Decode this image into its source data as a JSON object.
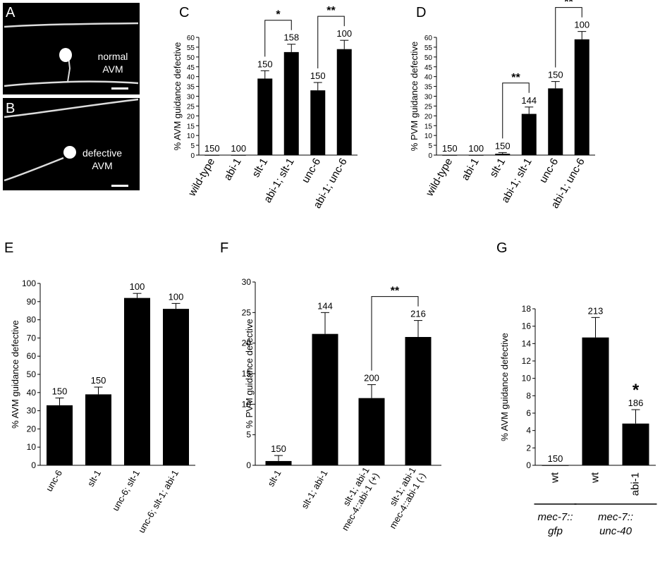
{
  "micrographs": [
    {
      "panel": "A",
      "label_line1": "normal",
      "label_line2": "AVM"
    },
    {
      "panel": "B",
      "label_line1": "defective",
      "label_line2": "AVM"
    }
  ],
  "chart_data": [
    {
      "panel": "C",
      "type": "bar",
      "ylabel": "% AVM guidance defective",
      "ylim": [
        0,
        60
      ],
      "yticks": [
        "0",
        "5",
        "10",
        "15",
        "20",
        "25",
        "30",
        "35",
        "40",
        "45",
        "50",
        "55",
        "60"
      ],
      "categories": [
        "wild-type",
        "abi-1",
        "slt-1",
        "abi-1; slt-1",
        "unc-6",
        "abi-1; unc-6"
      ],
      "values": [
        0,
        0,
        39,
        52.5,
        33,
        54
      ],
      "errors": [
        0,
        0,
        4,
        4,
        4,
        4.5
      ],
      "n_labels": [
        "150",
        "100",
        "150",
        "158",
        "150",
        "100"
      ],
      "significance": [
        {
          "from": 2,
          "to": 3,
          "label": "*"
        },
        {
          "from": 4,
          "to": 5,
          "label": "**"
        }
      ]
    },
    {
      "panel": "D",
      "type": "bar",
      "ylabel": "% PVM guidance defective",
      "ylim": [
        0,
        60
      ],
      "yticks": [
        "0",
        "5",
        "10",
        "15",
        "20",
        "25",
        "30",
        "35",
        "40",
        "45",
        "50",
        "55",
        "60"
      ],
      "categories": [
        "wild-type",
        "abi-1",
        "slt-1",
        "abi-1; slt-1",
        "unc-6",
        "abi-1; unc-6"
      ],
      "values": [
        0,
        0,
        0.7,
        21,
        34,
        59
      ],
      "errors": [
        0,
        0,
        0.6,
        3.5,
        3.5,
        4
      ],
      "n_labels": [
        "150",
        "100",
        "150",
        "144",
        "150",
        "100"
      ],
      "significance": [
        {
          "from": 2,
          "to": 3,
          "label": "**"
        },
        {
          "from": 4,
          "to": 5,
          "label": "**"
        }
      ]
    },
    {
      "panel": "E",
      "type": "bar",
      "ylabel": "% AVM guidance defective",
      "ylim": [
        0,
        100
      ],
      "yticks": [
        "0",
        "10",
        "20",
        "30",
        "40",
        "50",
        "60",
        "70",
        "80",
        "90",
        "100"
      ],
      "categories": [
        "unc-6",
        "slt-1",
        "unc-6; slt-1",
        "unc-6; slt-1; abi-1"
      ],
      "values": [
        33,
        39,
        92,
        86
      ],
      "errors": [
        4,
        4,
        2.5,
        3
      ],
      "n_labels": [
        "150",
        "150",
        "100",
        "100"
      ],
      "significance": []
    },
    {
      "panel": "F",
      "type": "bar",
      "ylabel": "% PVM guidance defective",
      "ylim": [
        0,
        30
      ],
      "yticks": [
        "0",
        "5",
        "10",
        "15",
        "20",
        "25",
        "30"
      ],
      "categories": [
        "slt-1",
        "slt-1; abi-1",
        "slt-1; abi-1\nmec-4::abi-1 (+)",
        "slt-1; abi-1\nmec-4::abi-1 (-)"
      ],
      "values": [
        0.7,
        21.5,
        11,
        21
      ],
      "errors": [
        0.9,
        3.5,
        2.2,
        2.7
      ],
      "n_labels": [
        "150",
        "144",
        "200",
        "216"
      ],
      "significance": [
        {
          "from": 2,
          "to": 3,
          "label": "**"
        }
      ]
    },
    {
      "panel": "G",
      "type": "bar",
      "ylabel": "% AVM guidance defective",
      "ylim": [
        0,
        18
      ],
      "yticks": [
        "0",
        "2",
        "4",
        "6",
        "8",
        "10",
        "12",
        "14",
        "16",
        "18"
      ],
      "categories": [
        "wt",
        "wt",
        "abi-1"
      ],
      "values": [
        0,
        14.7,
        4.8
      ],
      "errors": [
        0,
        2.3,
        1.6
      ],
      "n_labels": [
        "150",
        "213",
        "186"
      ],
      "significance": [
        {
          "bar": 2,
          "label": "*"
        }
      ],
      "groups": [
        {
          "line1": "mec-7::",
          "line2": "gfp"
        },
        {
          "line1": "mec-7::",
          "line2": "unc-40"
        }
      ]
    }
  ]
}
